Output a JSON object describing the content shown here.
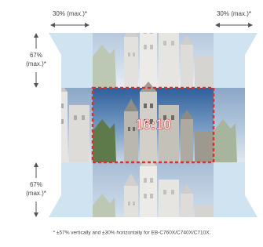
{
  "labels": {
    "horizontal_left": "30% (max.)*",
    "horizontal_right": "30% (max.)*",
    "vertical_top": [
      "67%",
      "(max.)*"
    ],
    "vertical_bottom": [
      "67%",
      "(max.)*"
    ],
    "aspect": "16:10"
  },
  "footnote": "* ±57% vertically and ±30% horizontally for EB-C760X/C740X/C710X."
}
